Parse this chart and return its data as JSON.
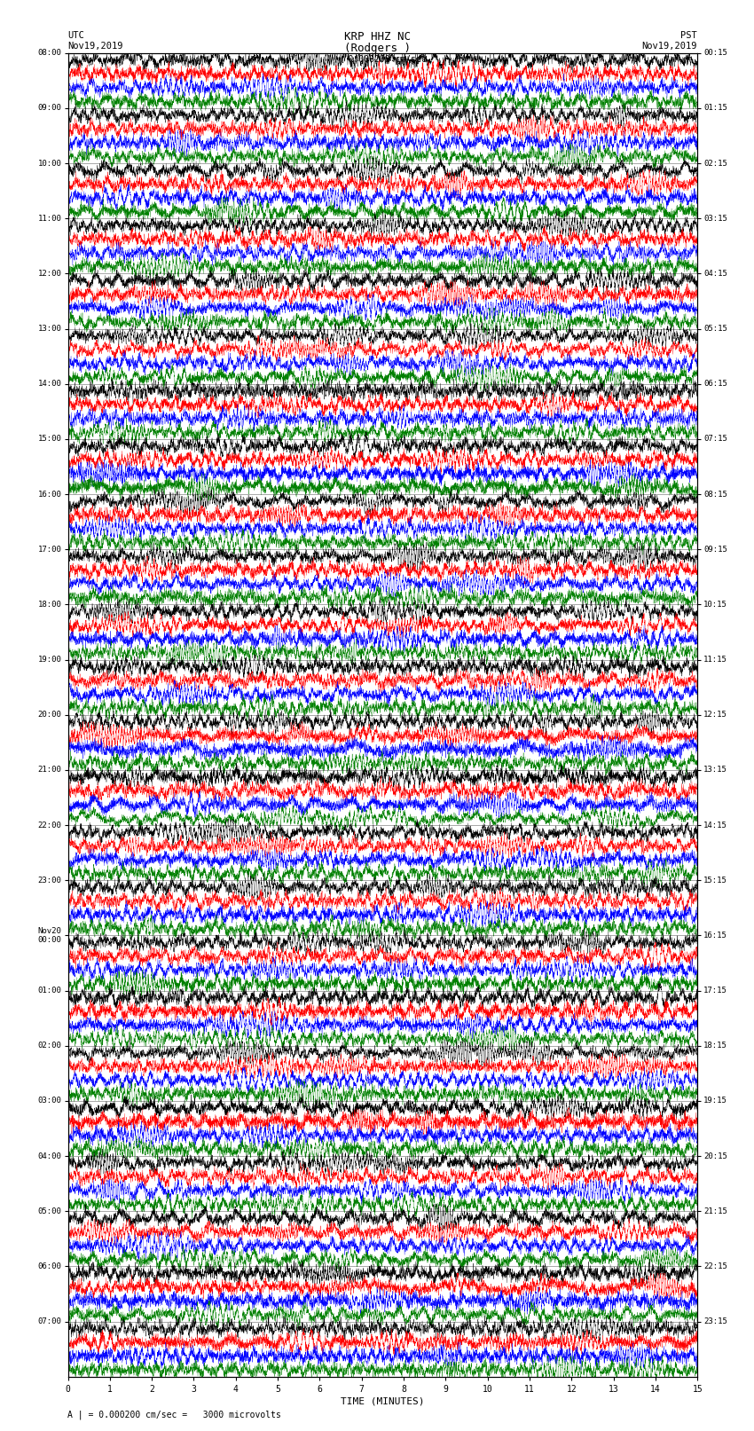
{
  "title_line1": "KRP HHZ NC",
  "title_line2": "(Rodgers )",
  "scale_label": "| = 0.000200 cm/sec",
  "left_date": "UTC\nNov19,2019",
  "right_date": "PST\nNov19,2019",
  "bottom_label": "TIME (MINUTES)",
  "footnote": "A | = 0.000200 cm/sec =   3000 microvolts",
  "left_times": [
    "08:00",
    "09:00",
    "10:00",
    "11:00",
    "12:00",
    "13:00",
    "14:00",
    "15:00",
    "16:00",
    "17:00",
    "18:00",
    "19:00",
    "20:00",
    "21:00",
    "22:00",
    "23:00",
    "Nov20\n00:00",
    "01:00",
    "02:00",
    "03:00",
    "04:00",
    "05:00",
    "06:00",
    "07:00"
  ],
  "right_times": [
    "00:15",
    "01:15",
    "02:15",
    "03:15",
    "04:15",
    "05:15",
    "06:15",
    "07:15",
    "08:15",
    "09:15",
    "10:15",
    "11:15",
    "12:15",
    "13:15",
    "14:15",
    "15:15",
    "16:15",
    "17:15",
    "18:15",
    "19:15",
    "20:15",
    "21:15",
    "22:15",
    "23:15"
  ],
  "n_rows": 24,
  "traces_per_row": 4,
  "minutes_per_row": 15,
  "colors": [
    "black",
    "red",
    "blue",
    "green"
  ],
  "bg_color": "white",
  "fig_width": 8.5,
  "fig_height": 16.13,
  "trace_amplitude": 0.42,
  "n_samples": 9000
}
